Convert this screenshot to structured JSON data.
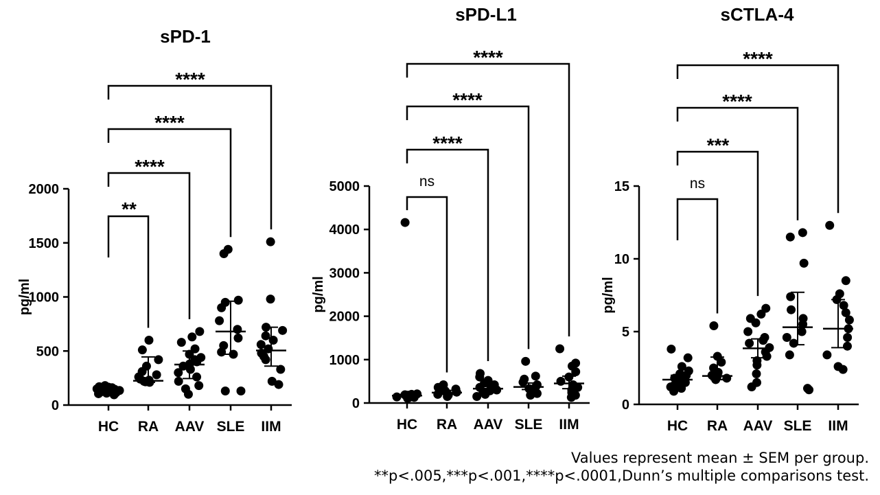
{
  "chart_data": [
    {
      "type": "scatter",
      "title": "sPD-1",
      "xlabel": "",
      "ylabel": "pg/ml",
      "ylim": [
        0,
        2000
      ],
      "yticks": [
        "0",
        "500",
        "1000",
        "1500",
        "2000"
      ],
      "categories": [
        "HC",
        "RA",
        "AAV",
        "SLE",
        "IIM"
      ],
      "mean": [
        140,
        225,
        375,
        680,
        505
      ],
      "error_low": [
        120,
        210,
        245,
        470,
        360
      ],
      "error_high": [
        160,
        445,
        500,
        960,
        720
      ],
      "points": [
        [
          95,
          105,
          110,
          115,
          120,
          125,
          130,
          135,
          140,
          145,
          150,
          155,
          160,
          165,
          170,
          180
        ],
        [
          210,
          215,
          220,
          230,
          240,
          260,
          280,
          310,
          360,
          420,
          510,
          600
        ],
        [
          100,
          150,
          180,
          220,
          260,
          300,
          330,
          360,
          380,
          400,
          420,
          440,
          470,
          520,
          580,
          630,
          680
        ],
        [
          130,
          130,
          470,
          490,
          550,
          620,
          700,
          780,
          900,
          950,
          970,
          1400,
          1440
        ],
        [
          190,
          220,
          330,
          420,
          450,
          480,
          520,
          560,
          600,
          640,
          690,
          720,
          980,
          1510
        ]
      ],
      "comparisons": [
        {
          "to": "RA",
          "label": "**"
        },
        {
          "to": "AAV",
          "label": "****"
        },
        {
          "to": "SLE",
          "label": "****"
        },
        {
          "to": "IIM",
          "label": "****"
        }
      ],
      "grid": false
    },
    {
      "type": "scatter",
      "title": "sPD-L1",
      "xlabel": "",
      "ylabel": "pg/ml",
      "ylim": [
        0,
        5000
      ],
      "yticks": [
        "0",
        "1000",
        "2000",
        "3000",
        "4000",
        "5000"
      ],
      "categories": [
        "HC",
        "RA",
        "AAV",
        "SLE",
        "IIM"
      ],
      "mean": [
        170,
        240,
        330,
        370,
        450
      ],
      "error_low": [
        150,
        200,
        270,
        310,
        330
      ],
      "error_high": [
        200,
        290,
        400,
        460,
        620
      ],
      "points": [
        [
          110,
          120,
          130,
          140,
          150,
          160,
          170,
          180,
          190,
          200,
          210,
          4160
        ],
        [
          150,
          180,
          200,
          230,
          250,
          280,
          320,
          360,
          420
        ],
        [
          150,
          200,
          240,
          280,
          300,
          330,
          360,
          390,
          420,
          460,
          520,
          600,
          680
        ],
        [
          180,
          220,
          260,
          300,
          330,
          370,
          420,
          480,
          550,
          620,
          960
        ],
        [
          130,
          180,
          240,
          300,
          360,
          420,
          500,
          600,
          720,
          850,
          920,
          1250
        ]
      ],
      "comparisons": [
        {
          "to": "RA",
          "label": "ns"
        },
        {
          "to": "AAV",
          "label": "****"
        },
        {
          "to": "SLE",
          "label": "****"
        },
        {
          "to": "IIM",
          "label": "****"
        }
      ],
      "grid": false
    },
    {
      "type": "scatter",
      "title": "sCTLA-4",
      "xlabel": "",
      "ylabel": "pg/ml",
      "ylim": [
        0,
        15
      ],
      "yticks": [
        "0",
        "5",
        "10",
        "15"
      ],
      "categories": [
        "HC",
        "RA",
        "AAV",
        "SLE",
        "IIM"
      ],
      "mean": [
        1.7,
        1.95,
        3.85,
        5.3,
        5.2
      ],
      "error_low": [
        1.4,
        1.7,
        3.2,
        4.1,
        3.9
      ],
      "error_high": [
        2.0,
        3.25,
        4.5,
        7.7,
        7.2
      ],
      "points": [
        [
          0.9,
          1.1,
          1.2,
          1.3,
          1.4,
          1.5,
          1.6,
          1.7,
          1.8,
          1.9,
          2.0,
          2.1,
          2.3,
          2.6,
          3.2,
          3.8
        ],
        [
          1.7,
          1.8,
          1.9,
          2.0,
          2.2,
          2.5,
          2.9,
          3.3,
          5.4
        ],
        [
          1.2,
          1.5,
          2.1,
          2.7,
          3.0,
          3.3,
          3.6,
          3.9,
          4.2,
          4.4,
          4.6,
          5.0,
          5.6,
          5.9,
          6.2,
          6.6
        ],
        [
          1.0,
          1.1,
          3.4,
          4.2,
          4.6,
          5.0,
          5.5,
          5.9,
          6.5,
          7.4,
          9.7,
          11.5,
          11.8
        ],
        [
          2.4,
          2.6,
          3.4,
          4.0,
          4.6,
          5.2,
          5.8,
          6.3,
          6.8,
          7.2,
          7.6,
          8.5,
          12.3
        ]
      ],
      "comparisons": [
        {
          "to": "RA",
          "label": "ns"
        },
        {
          "to": "AAV",
          "label": "***"
        },
        {
          "to": "SLE",
          "label": "****"
        },
        {
          "to": "IIM",
          "label": "****"
        }
      ],
      "grid": false
    }
  ],
  "footnote": {
    "line1": "Values represent mean ± SEM per group.",
    "line2": "**p<.005,***p<.001,****p<.0001,Dunn’s multiple comparisons test."
  }
}
